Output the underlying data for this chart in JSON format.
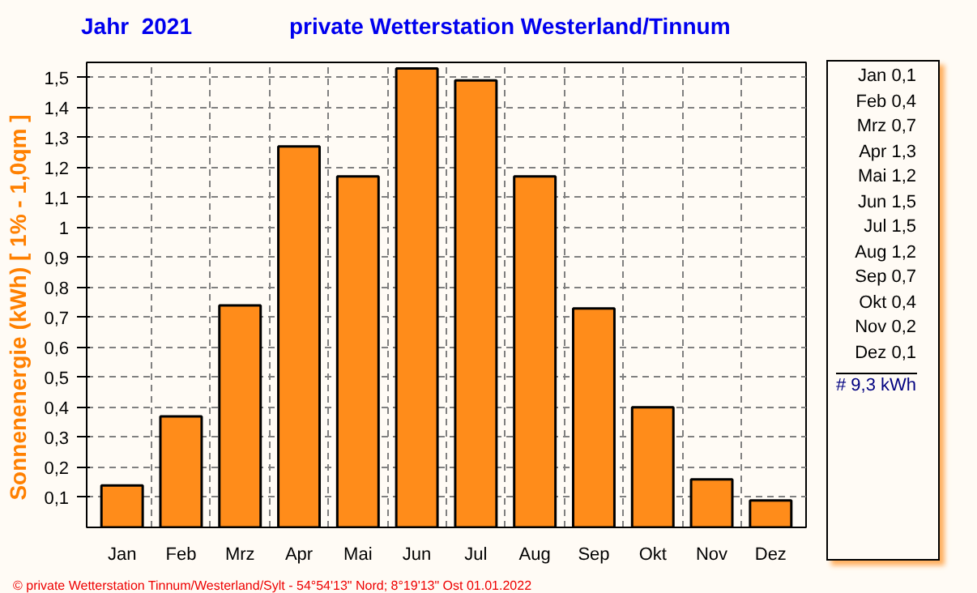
{
  "chart_data": {
    "type": "bar",
    "title": "Jahr  2021",
    "subtitle": "private Wetterstation Westerland/Tinnum",
    "ylabel": "Sonnenenergie  (kWh)    [ 1% - 1,0qm ]",
    "categories": [
      "Jan",
      "Feb",
      "Mrz",
      "Apr",
      "Mai",
      "Jun",
      "Jul",
      "Aug",
      "Sep",
      "Okt",
      "Nov",
      "Dez"
    ],
    "values": [
      0.14,
      0.37,
      0.74,
      1.27,
      1.17,
      1.53,
      1.49,
      1.17,
      0.73,
      0.4,
      0.16,
      0.09
    ],
    "color": "#ff8c1a",
    "ylim": [
      0,
      1.55
    ],
    "yticks": [
      {
        "value": 0.1,
        "label": "0,1"
      },
      {
        "value": 0.2,
        "label": "0,2"
      },
      {
        "value": 0.3,
        "label": "0,3"
      },
      {
        "value": 0.4,
        "label": "0,4"
      },
      {
        "value": 0.5,
        "label": "0,5"
      },
      {
        "value": 0.6,
        "label": "0,6"
      },
      {
        "value": 0.7,
        "label": "0,7"
      },
      {
        "value": 0.8,
        "label": "0,8"
      },
      {
        "value": 0.9,
        "label": "0,9"
      },
      1,
      {
        "value": 1.1,
        "label": "1,1"
      },
      {
        "value": 1.2,
        "label": "1,2"
      },
      {
        "value": 1.3,
        "label": "1,3"
      },
      {
        "value": 1.4,
        "label": "1,4"
      },
      {
        "value": 1.5,
        "label": "1,5"
      }
    ],
    "grid": true,
    "annotations": [
      "Jan 0,1",
      "Feb 0,4",
      "Mrz 0,7",
      "Apr 1,3",
      "Mai 1,2",
      "Jun 1,5",
      "Jul 1,5",
      "Aug 1,2",
      "Sep 0,7",
      "Okt 0,4",
      "Nov 0,2",
      "Dez 0,1",
      "# 9,3 kWh",
      "© private Wetterstation Tinnum/Westerland/Sylt  -  54°54'13\" Nord; 8°19'13\" Ost  01.01.2022"
    ]
  }
}
